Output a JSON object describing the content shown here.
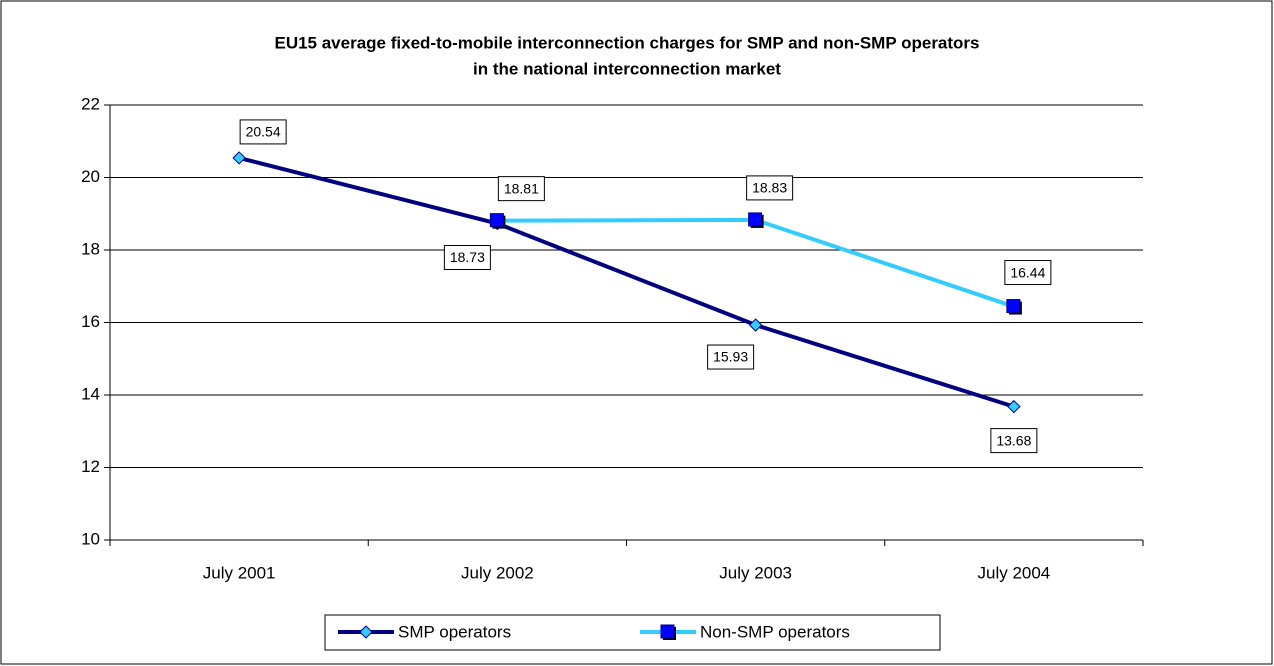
{
  "chart_data": {
    "type": "line",
    "title": [
      "EU15 average fixed-to-mobile interconnection charges for SMP and non-SMP operators",
      "in the national interconnection market"
    ],
    "categories": [
      "July 2001",
      "July 2002",
      "July 2003",
      "July 2004"
    ],
    "series": [
      {
        "name": "SMP operators",
        "color": "#000080",
        "marker_color": "#33ccff",
        "values": [
          20.54,
          18.73,
          15.93,
          13.68
        ]
      },
      {
        "name": "Non-SMP operators",
        "color": "#33ccff",
        "marker_color": "#0000ff",
        "values": [
          null,
          18.81,
          18.83,
          16.44
        ]
      }
    ],
    "ylim": [
      10,
      22
    ],
    "yticks": [
      10,
      12,
      14,
      16,
      18,
      20,
      22
    ],
    "grid": true,
    "legend": "bottom"
  }
}
